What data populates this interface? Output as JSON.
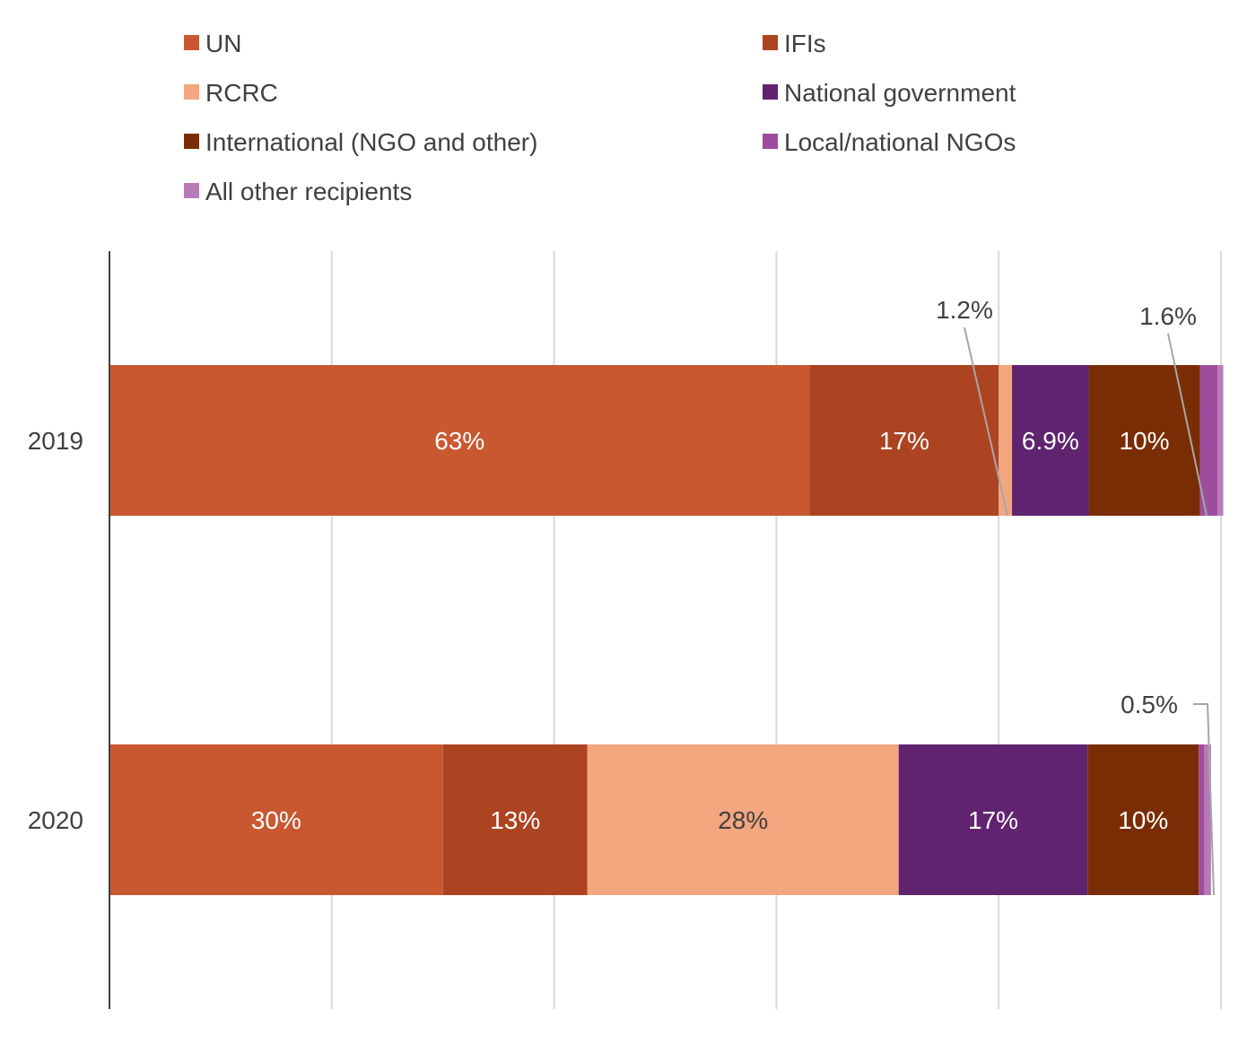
{
  "chart_data": {
    "type": "bar",
    "orientation": "horizontal",
    "stacked": true,
    "categories": [
      "2019",
      "2020"
    ],
    "series": [
      {
        "name": "UN",
        "color": "#c95830",
        "values": [
          63,
          30
        ],
        "labels": [
          "63%",
          "30%"
        ]
      },
      {
        "name": "IFIs",
        "color": "#ac4421",
        "values": [
          17,
          13
        ],
        "labels": [
          "17%",
          "13%"
        ]
      },
      {
        "name": "RCRC",
        "color": "#f4a67e",
        "values": [
          1.2,
          28
        ],
        "labels": [
          "1.2%",
          "28%"
        ]
      },
      {
        "name": "National government",
        "color": "#60236f",
        "values": [
          6.9,
          17
        ],
        "labels": [
          "6.9%",
          "17%"
        ]
      },
      {
        "name": "International (NGO and other)",
        "color": "#7a2d05",
        "values": [
          10,
          10
        ],
        "labels": [
          "10%",
          "10%"
        ]
      },
      {
        "name": "Local/national NGOs",
        "color": "#9e4d9e",
        "values": [
          1.6,
          0.5
        ],
        "labels": [
          "1.6%",
          "0.5%"
        ]
      },
      {
        "name": "All other recipients",
        "color": "#b77ab7",
        "values": [
          0.5,
          0.6
        ],
        "labels": [
          "",
          ""
        ]
      }
    ],
    "xlim": [
      0,
      100
    ],
    "grid": true,
    "legend_position": "top"
  }
}
